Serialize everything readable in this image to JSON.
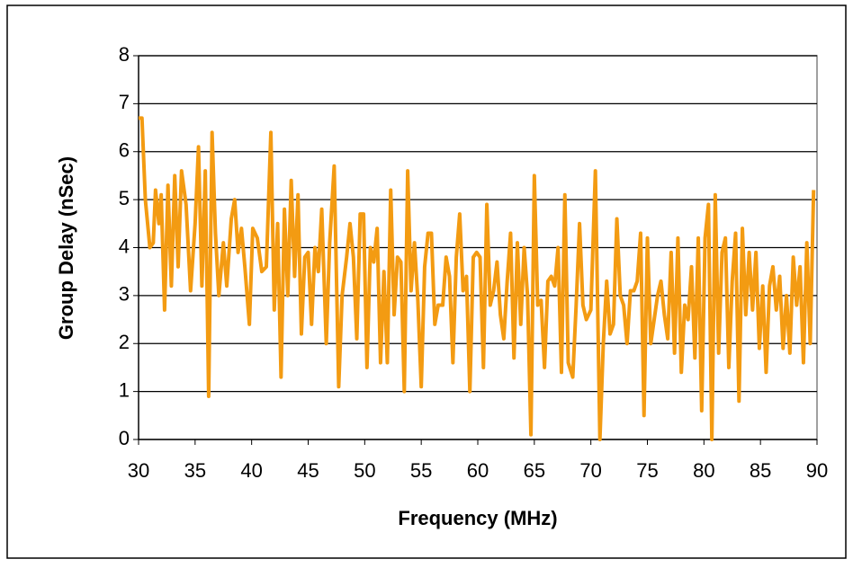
{
  "chart_data": {
    "type": "line",
    "x_label": "Frequency (MHz)",
    "y_label": "Group Delay (nSec)",
    "xlim": [
      30,
      90
    ],
    "xticks": [
      30,
      35,
      40,
      45,
      50,
      55,
      60,
      65,
      70,
      75,
      80,
      85,
      90
    ],
    "ylim": [
      0,
      8
    ],
    "yticks": [
      0,
      1,
      2,
      3,
      4,
      5,
      6,
      7,
      8
    ],
    "grid": true,
    "x": [
      30.0,
      30.3,
      30.6,
      31.0,
      31.3,
      31.5,
      31.8,
      32.0,
      32.3,
      32.6,
      32.9,
      33.2,
      33.5,
      33.8,
      34.2,
      34.6,
      35.0,
      35.3,
      35.6,
      35.9,
      36.2,
      36.5,
      36.8,
      37.1,
      37.5,
      37.8,
      38.2,
      38.5,
      38.8,
      39.1,
      39.4,
      39.8,
      40.1,
      40.5,
      40.9,
      41.3,
      41.7,
      42.0,
      42.3,
      42.6,
      42.9,
      43.2,
      43.5,
      43.8,
      44.1,
      44.4,
      44.7,
      45.0,
      45.3,
      45.6,
      45.9,
      46.2,
      46.6,
      46.9,
      47.3,
      47.7,
      48.0,
      48.4,
      48.7,
      49.0,
      49.3,
      49.6,
      49.9,
      50.2,
      50.5,
      50.8,
      51.1,
      51.4,
      51.7,
      52.0,
      52.3,
      52.6,
      52.9,
      53.2,
      53.5,
      53.8,
      54.1,
      54.4,
      54.7,
      55.0,
      55.3,
      55.6,
      55.9,
      56.2,
      56.5,
      56.9,
      57.2,
      57.5,
      57.8,
      58.1,
      58.4,
      58.7,
      59.0,
      59.3,
      59.6,
      59.9,
      60.2,
      60.5,
      60.8,
      61.1,
      61.4,
      61.7,
      62.0,
      62.3,
      62.6,
      62.9,
      63.2,
      63.5,
      63.8,
      64.1,
      64.4,
      64.7,
      65.0,
      65.3,
      65.6,
      65.9,
      66.2,
      66.5,
      66.8,
      67.1,
      67.4,
      67.7,
      68.0,
      68.4,
      68.7,
      69.0,
      69.3,
      69.6,
      70.0,
      70.4,
      70.8,
      71.1,
      71.4,
      71.7,
      72.0,
      72.3,
      72.6,
      72.9,
      73.2,
      73.5,
      73.8,
      74.1,
      74.4,
      74.7,
      75.0,
      75.3,
      75.6,
      75.9,
      76.2,
      76.5,
      76.8,
      77.1,
      77.4,
      77.7,
      78.0,
      78.3,
      78.6,
      78.9,
      79.2,
      79.5,
      79.8,
      80.1,
      80.4,
      80.7,
      81.0,
      81.3,
      81.6,
      81.9,
      82.2,
      82.5,
      82.8,
      83.1,
      83.4,
      83.7,
      84.0,
      84.3,
      84.6,
      84.9,
      85.2,
      85.5,
      85.8,
      86.1,
      86.4,
      86.7,
      87.0,
      87.3,
      87.6,
      87.9,
      88.2,
      88.5,
      88.8,
      89.1,
      89.4,
      89.7
    ],
    "series": [
      {
        "color": "#f39b12",
        "values": [
          6.7,
          6.7,
          5.0,
          4.0,
          4.1,
          5.2,
          4.5,
          5.1,
          2.7,
          5.3,
          3.2,
          5.5,
          3.6,
          5.6,
          4.9,
          3.1,
          4.5,
          6.1,
          3.2,
          5.6,
          0.9,
          6.4,
          4.3,
          3.0,
          4.1,
          3.2,
          4.6,
          5.0,
          3.9,
          4.4,
          3.6,
          2.4,
          4.4,
          4.2,
          3.5,
          3.6,
          6.4,
          2.7,
          4.5,
          1.3,
          4.8,
          3.0,
          5.4,
          3.4,
          5.1,
          2.2,
          3.8,
          3.9,
          2.4,
          4.0,
          3.5,
          4.8,
          2.0,
          4.1,
          5.7,
          1.1,
          3.0,
          3.8,
          4.5,
          3.8,
          2.1,
          4.7,
          4.7,
          1.5,
          4.0,
          3.7,
          4.4,
          1.6,
          3.5,
          1.6,
          5.2,
          2.6,
          3.8,
          3.7,
          1.0,
          5.6,
          3.1,
          4.1,
          2.9,
          1.1,
          3.6,
          4.3,
          4.3,
          2.4,
          2.8,
          2.8,
          3.8,
          3.4,
          1.6,
          3.8,
          4.7,
          3.1,
          3.4,
          1.0,
          3.8,
          3.9,
          3.8,
          1.5,
          4.9,
          2.8,
          3.1,
          3.7,
          2.6,
          2.1,
          3.3,
          4.3,
          1.7,
          4.1,
          2.4,
          4.0,
          3.0,
          0.1,
          5.5,
          2.8,
          2.9,
          1.5,
          3.3,
          3.4,
          3.2,
          4.0,
          1.4,
          5.1,
          1.6,
          1.3,
          2.8,
          4.5,
          2.8,
          2.5,
          2.7,
          5.6,
          0.0,
          2.0,
          3.3,
          2.2,
          2.4,
          4.6,
          3.0,
          2.8,
          2.0,
          3.1,
          3.1,
          3.3,
          4.3,
          0.5,
          4.2,
          2.0,
          2.5,
          3.0,
          3.3,
          2.6,
          2.1,
          3.9,
          1.8,
          4.2,
          1.4,
          2.8,
          2.5,
          3.6,
          1.7,
          4.2,
          0.6,
          4.2,
          4.9,
          0.0,
          5.1,
          1.8,
          3.9,
          4.2,
          1.5,
          3.3,
          4.3,
          0.8,
          4.4,
          2.6,
          3.9,
          2.7,
          3.9,
          1.9,
          3.2,
          1.4,
          3.2,
          3.6,
          2.7,
          3.4,
          1.9,
          3.0,
          1.8,
          3.8,
          2.8,
          3.6,
          1.6,
          4.1,
          2.0,
          5.2
        ]
      }
    ]
  }
}
